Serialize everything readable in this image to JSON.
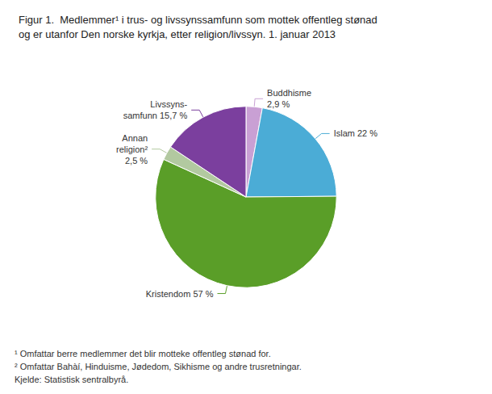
{
  "chart_data": {
    "type": "pie",
    "title": "Figur 1.  Medlemmer¹ i trus- og livssynssamfunn som mottek offentleg stønad\nog er utanfor Den norske kyrkja, etter religion/livssyn. 1. januar 2013",
    "categories": [
      "Buddhisme\n2,9 %",
      "Islam 22 %",
      "Kristendom 57 %",
      "Annan\nreligion²\n2,5 %",
      "Livssyns-\nsamfunn 15,7 %"
    ],
    "values": [
      2.9,
      22.0,
      57.0,
      2.5,
      15.7
    ],
    "colors": [
      "#c9a0d4",
      "#4bacd6",
      "#5a9e28",
      "#b2c9a0",
      "#7b3f9e"
    ],
    "annotations": [
      "¹ Omfattar berre medlemmer det blir motteke offentleg stønad for.",
      "² Omfattar Bahàí, Hinduisme, Jødedom, Sikhisme og andre trusretningar.",
      "Kjelde: Statistisk sentralbyrå."
    ],
    "legend": false
  }
}
